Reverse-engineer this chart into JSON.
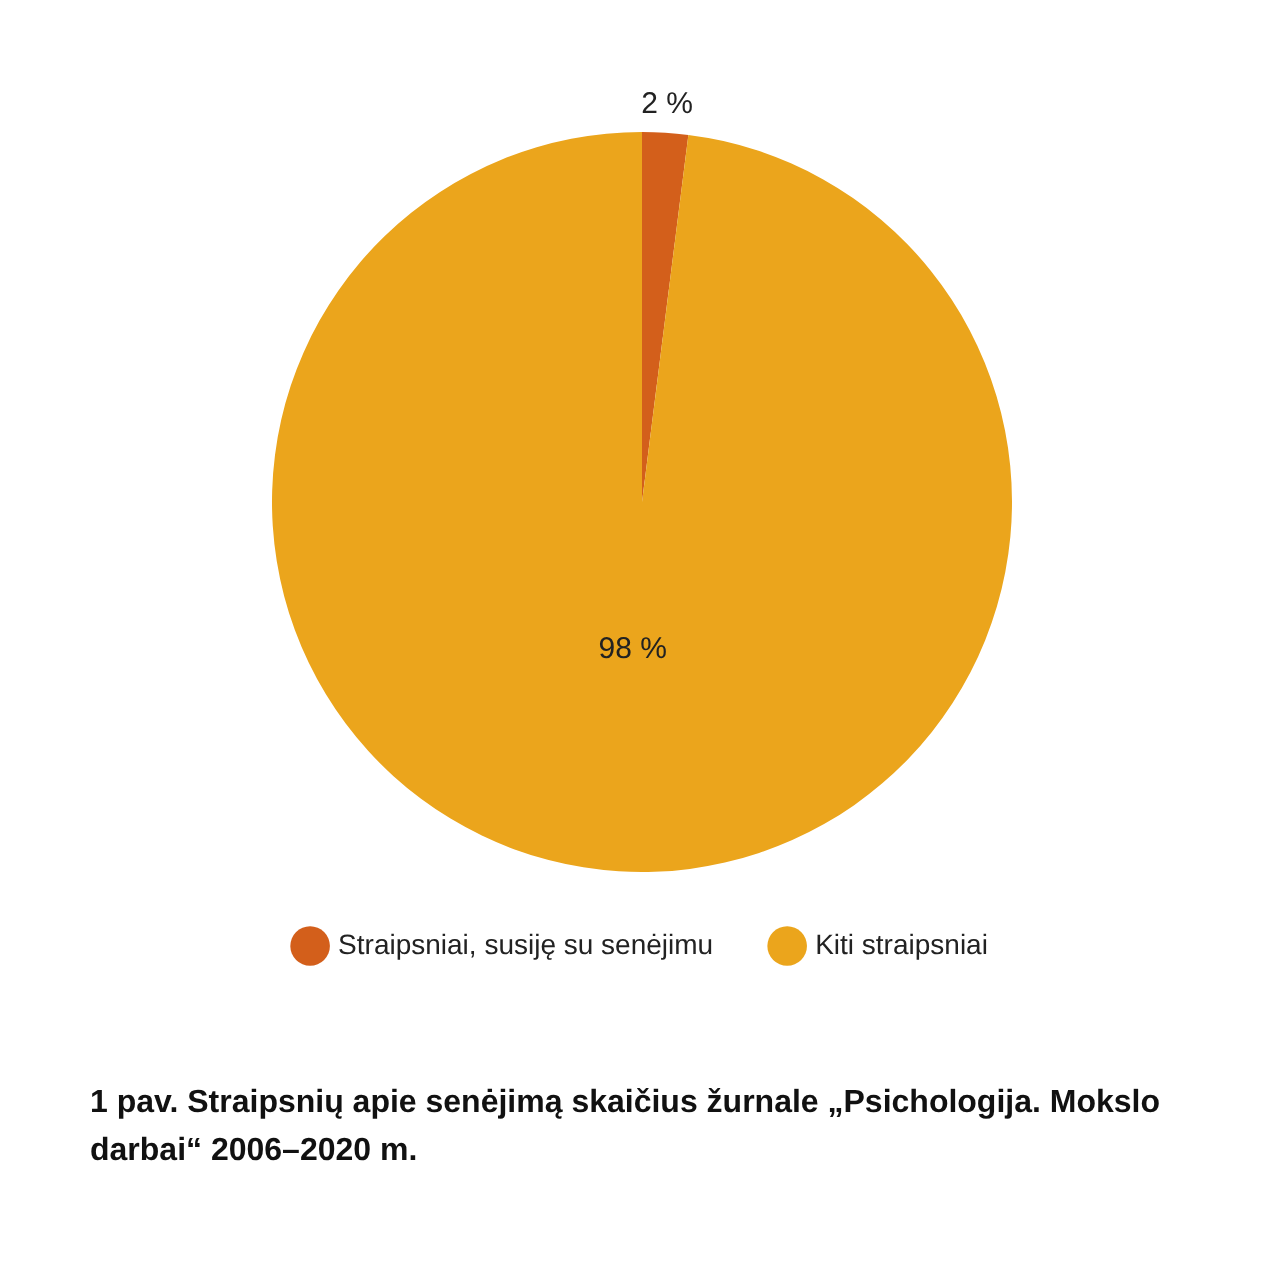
{
  "chart_data": {
    "type": "pie",
    "title": "1 pav. Straipsnių apie senėjimą skaičius žurnale „Psichologija. Mokslo darbai“ 2006–2020 m.",
    "categories": [
      "Straipsniai, susiję su senėjimu",
      "Kiti straipsniai"
    ],
    "values": [
      2,
      98
    ],
    "colors": [
      "#d35f1b",
      "#eba51c"
    ],
    "value_labels": [
      "2 %",
      "98 %"
    ],
    "legend": "bottom"
  }
}
